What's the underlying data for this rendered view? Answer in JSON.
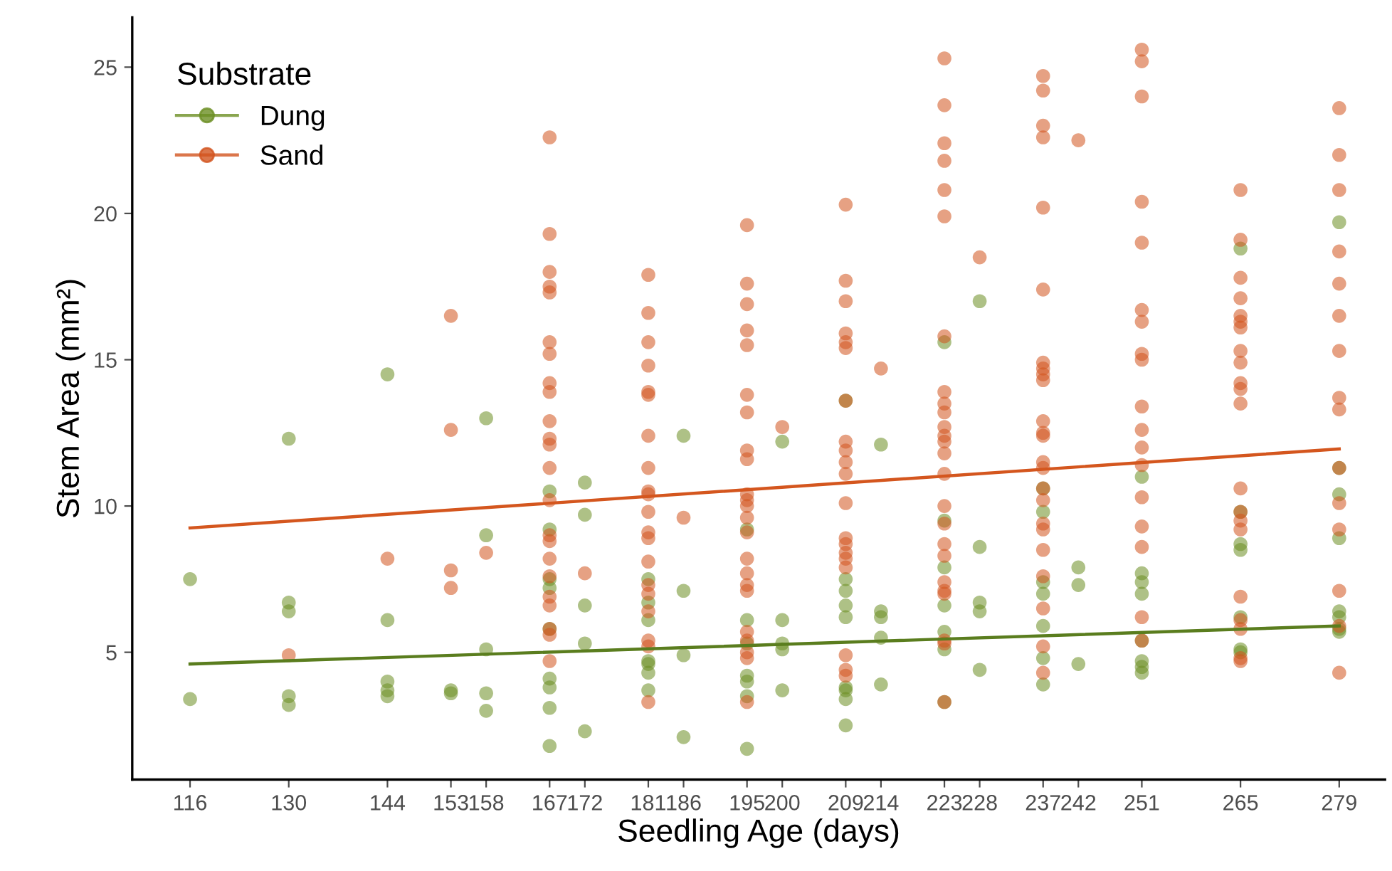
{
  "chart_data": {
    "type": "scatter",
    "xlabel": "Seedling Age (days)",
    "ylabel": "Stem Area (mm²)",
    "legend_title": "Substrate",
    "legend": "top left",
    "grid": false,
    "xlim": [
      107.8,
      285.5
    ],
    "xticks": [
      116,
      130,
      144,
      153,
      158,
      167,
      172,
      181,
      186,
      195,
      200,
      209,
      214,
      223,
      228,
      237,
      242,
      251,
      265,
      279
    ],
    "ylim": [
      0.65,
      26.7
    ],
    "yticks": [
      5,
      10,
      15,
      20,
      25
    ],
    "series": [
      {
        "name": "Dung",
        "marker": "circle",
        "color": "#6b8e23",
        "x": [
          116,
          116,
          130,
          130,
          130,
          130,
          130,
          144,
          144,
          144,
          144,
          144,
          153,
          153,
          158,
          158,
          158,
          158,
          158,
          167,
          167,
          167,
          167,
          167,
          167,
          167,
          167,
          167,
          172,
          172,
          172,
          172,
          172,
          181,
          181,
          181,
          181,
          181,
          181,
          181,
          186,
          186,
          186,
          186,
          195,
          195,
          195,
          195,
          195,
          195,
          195,
          200,
          200,
          200,
          200,
          200,
          209,
          209,
          209,
          209,
          209,
          209,
          209,
          209,
          209,
          214,
          214,
          214,
          214,
          214,
          223,
          223,
          223,
          223,
          223,
          223,
          223,
          228,
          228,
          228,
          228,
          228,
          237,
          237,
          237,
          237,
          237,
          237,
          237,
          242,
          242,
          242,
          251,
          251,
          251,
          251,
          251,
          251,
          251,
          251,
          265,
          265,
          265,
          265,
          265,
          265,
          265,
          279,
          279,
          279,
          279,
          279,
          279,
          279,
          279
        ],
        "values": [
          7.5,
          3.4,
          12.3,
          6.7,
          6.4,
          3.5,
          3.2,
          14.5,
          6.1,
          4.0,
          3.7,
          3.5,
          3.7,
          3.6,
          13.0,
          9.0,
          5.1,
          3.6,
          3.0,
          10.5,
          9.2,
          7.5,
          7.2,
          5.8,
          4.1,
          3.8,
          3.1,
          1.8,
          10.8,
          9.7,
          6.6,
          5.3,
          2.3,
          7.5,
          6.7,
          6.1,
          4.7,
          4.6,
          4.3,
          3.7,
          12.4,
          7.1,
          4.9,
          2.1,
          9.2,
          6.1,
          5.3,
          4.2,
          4.0,
          3.5,
          1.7,
          12.2,
          6.1,
          5.3,
          5.1,
          3.7,
          13.6,
          7.5,
          7.1,
          6.6,
          6.2,
          3.8,
          3.7,
          3.4,
          2.5,
          12.1,
          6.4,
          6.2,
          5.5,
          3.9,
          15.6,
          9.5,
          7.9,
          6.6,
          5.7,
          5.1,
          3.3,
          17.0,
          8.6,
          6.7,
          6.4,
          4.4,
          10.6,
          9.8,
          7.4,
          7.0,
          5.9,
          4.8,
          3.9,
          7.9,
          7.3,
          4.6,
          11.0,
          7.7,
          7.4,
          7.0,
          5.4,
          4.7,
          4.5,
          4.3,
          18.8,
          9.8,
          8.7,
          8.5,
          6.2,
          5.1,
          5.0,
          19.7,
          11.3,
          10.4,
          8.9,
          6.4,
          6.2,
          5.8,
          5.7
        ]
      },
      {
        "name": "Sand",
        "marker": "circle",
        "color": "#d2541e",
        "x": [
          130,
          144,
          153,
          153,
          153,
          153,
          158,
          167,
          167,
          167,
          167,
          167,
          167,
          167,
          167,
          167,
          167,
          167,
          167,
          167,
          167,
          167,
          167,
          167,
          167,
          167,
          167,
          167,
          167,
          167,
          172,
          181,
          181,
          181,
          181,
          181,
          181,
          181,
          181,
          181,
          181,
          181,
          181,
          181,
          181,
          181,
          181,
          181,
          181,
          181,
          181,
          186,
          195,
          195,
          195,
          195,
          195,
          195,
          195,
          195,
          195,
          195,
          195,
          195,
          195,
          195,
          195,
          195,
          195,
          195,
          195,
          195,
          195,
          195,
          195,
          200,
          209,
          209,
          209,
          209,
          209,
          209,
          209,
          209,
          209,
          209,
          209,
          209,
          209,
          209,
          209,
          209,
          209,
          209,
          209,
          209,
          214,
          223,
          223,
          223,
          223,
          223,
          223,
          223,
          223,
          223,
          223,
          223,
          223,
          223,
          223,
          223,
          223,
          223,
          223,
          223,
          223,
          223,
          223,
          223,
          223,
          223,
          228,
          237,
          237,
          237,
          237,
          237,
          237,
          237,
          237,
          237,
          237,
          237,
          237,
          237,
          237,
          237,
          237,
          237,
          237,
          237,
          237,
          237,
          237,
          237,
          237,
          242,
          251,
          251,
          251,
          251,
          251,
          251,
          251,
          251,
          251,
          251,
          251,
          251,
          251,
          251,
          251,
          251,
          251,
          251,
          265,
          265,
          265,
          265,
          265,
          265,
          265,
          265,
          265,
          265,
          265,
          265,
          265,
          265,
          265,
          265,
          265,
          265,
          265,
          265,
          265,
          279,
          279,
          279,
          279,
          279,
          279,
          279,
          279,
          279,
          279,
          279,
          279,
          279,
          279,
          279
        ],
        "values": [
          4.9,
          8.2,
          16.5,
          12.6,
          7.8,
          7.2,
          8.4,
          22.6,
          19.3,
          18.0,
          17.5,
          17.3,
          15.6,
          15.2,
          14.2,
          13.9,
          12.9,
          12.3,
          12.1,
          11.3,
          10.2,
          9.0,
          8.8,
          8.2,
          7.6,
          6.9,
          6.6,
          5.8,
          5.6,
          4.7,
          7.7,
          17.9,
          16.6,
          15.6,
          14.8,
          13.9,
          13.8,
          12.4,
          11.3,
          10.5,
          10.4,
          9.8,
          9.1,
          8.9,
          8.1,
          7.3,
          7.0,
          6.4,
          5.4,
          5.2,
          3.3,
          9.6,
          19.6,
          17.6,
          16.9,
          16.0,
          15.5,
          13.8,
          13.2,
          11.9,
          11.6,
          10.4,
          10.2,
          10.0,
          9.6,
          9.1,
          8.2,
          7.7,
          7.3,
          7.1,
          5.7,
          5.4,
          5.0,
          4.8,
          3.3,
          12.7,
          20.3,
          17.7,
          17.0,
          15.9,
          15.6,
          15.4,
          13.6,
          12.2,
          11.9,
          11.5,
          11.1,
          10.1,
          8.9,
          8.7,
          8.4,
          8.2,
          7.9,
          4.9,
          4.4,
          4.2,
          14.7,
          25.3,
          23.7,
          22.4,
          21.8,
          20.8,
          19.9,
          15.8,
          13.9,
          13.5,
          13.2,
          12.7,
          12.4,
          12.2,
          11.8,
          11.1,
          10.0,
          9.4,
          8.7,
          8.3,
          7.4,
          7.1,
          7.0,
          5.4,
          5.3,
          3.3,
          18.5,
          24.7,
          24.2,
          23.0,
          22.6,
          20.2,
          17.4,
          14.9,
          14.7,
          14.5,
          14.3,
          12.9,
          12.5,
          12.4,
          11.5,
          11.3,
          10.6,
          10.2,
          9.4,
          9.2,
          8.5,
          7.6,
          6.5,
          5.2,
          4.3,
          22.5,
          25.6,
          25.2,
          24.0,
          20.4,
          19.0,
          16.7,
          16.3,
          15.2,
          15.0,
          13.4,
          12.6,
          12.0,
          11.4,
          10.3,
          9.3,
          8.6,
          6.2,
          5.4,
          20.8,
          19.1,
          17.8,
          17.1,
          16.5,
          16.3,
          16.1,
          15.3,
          14.9,
          14.2,
          14.0,
          13.5,
          10.6,
          9.8,
          9.5,
          9.2,
          6.9,
          6.1,
          5.8,
          4.8,
          4.7,
          23.6,
          22.0,
          20.8,
          18.7,
          17.6,
          16.5,
          15.3,
          13.7,
          13.3,
          11.3,
          10.1,
          9.2,
          7.1,
          5.9,
          4.3
        ]
      },
      {
        "type": "line",
        "color": "#5a7d1e",
        "x": [
          116,
          279
        ],
        "values": [
          4.6,
          5.9
        ]
      },
      {
        "type": "line",
        "color": "#d4561e",
        "x": [
          116,
          279
        ],
        "values": [
          9.25,
          11.95
        ]
      }
    ]
  }
}
